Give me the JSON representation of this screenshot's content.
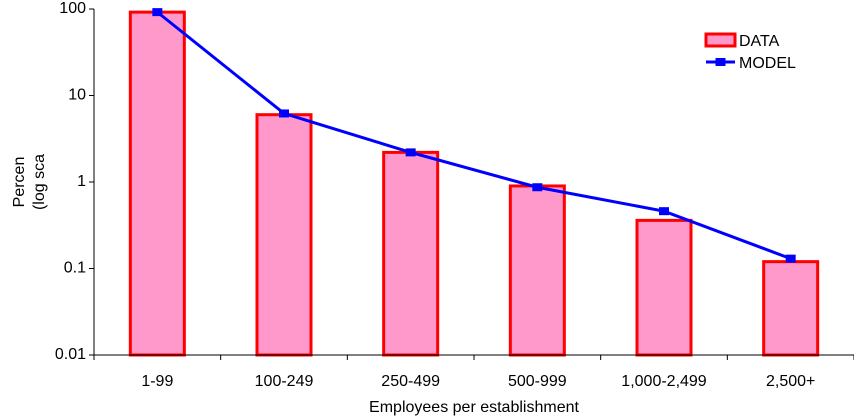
{
  "chart_data": {
    "type": "bar",
    "y_label": [
      "Percen",
      "(log sca"
    ],
    "x_label": "Employees per establishment",
    "categories": [
      "1-99",
      "100-249",
      "250-499",
      "500-999",
      "1,000-2,499",
      "2,500+"
    ],
    "series": [
      {
        "name": "DATA",
        "type": "bar",
        "color": "#ff99cc",
        "edgecolor": "#ff0000",
        "values": [
          92,
          6.0,
          2.2,
          0.9,
          0.36,
          0.12
        ]
      },
      {
        "name": "MODEL",
        "type": "line",
        "color": "#0000ff",
        "values": [
          92,
          6.2,
          2.2,
          0.87,
          0.46,
          0.13
        ]
      }
    ],
    "ylog": true,
    "ylim": [
      0.01,
      100
    ],
    "yticks": [
      0.01,
      0.1,
      1,
      10,
      100
    ],
    "grid": false,
    "legend": "upper right"
  }
}
